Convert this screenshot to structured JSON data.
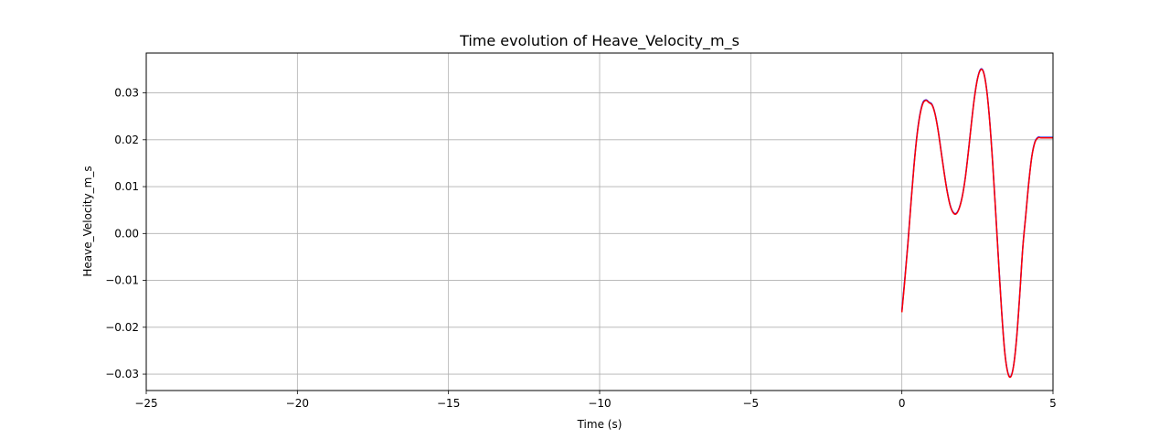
{
  "chart_data": {
    "type": "line",
    "title": "Time evolution of Heave_Velocity_m_s",
    "xlabel": "Time (s)",
    "ylabel": "Heave_Velocity_m_s",
    "xlim": [
      -25,
      5
    ],
    "ylim": [
      -0.0335,
      0.0385
    ],
    "grid": true,
    "x_ticks": [
      -25,
      -20,
      -15,
      -10,
      -5,
      0,
      5
    ],
    "x_tick_labels": [
      "−25",
      "−20",
      "−15",
      "−10",
      "−5",
      "0",
      "5"
    ],
    "y_ticks": [
      -0.03,
      -0.02,
      -0.01,
      0.0,
      0.01,
      0.02,
      0.03
    ],
    "y_tick_labels": [
      "−0.03",
      "−0.02",
      "−0.01",
      "0.00",
      "0.01",
      "0.02",
      "0.03"
    ],
    "series": [
      {
        "color": "#0000ff",
        "x": [
          0.0,
          0.1,
          0.2,
          0.3,
          0.4,
          0.5,
          0.6,
          0.7,
          0.8,
          0.9,
          1.0,
          1.1,
          1.2,
          1.3,
          1.4,
          1.5,
          1.6,
          1.7,
          1.8,
          1.9,
          2.0,
          2.1,
          2.2,
          2.3,
          2.4,
          2.5,
          2.6,
          2.7,
          2.8,
          2.9,
          3.0,
          3.1,
          3.2,
          3.3,
          3.4,
          3.5,
          3.6,
          3.7,
          3.8,
          3.9,
          4.0,
          4.1,
          4.2,
          4.3,
          4.4,
          4.5,
          4.6,
          4.7,
          4.8,
          4.9,
          5.0
        ],
        "y": [
          -0.0165,
          -0.0095,
          -0.002,
          0.0065,
          0.0145,
          0.021,
          0.0255,
          0.028,
          0.0285,
          0.028,
          0.0275,
          0.0255,
          0.022,
          0.0175,
          0.013,
          0.009,
          0.006,
          0.0045,
          0.0043,
          0.0055,
          0.008,
          0.012,
          0.0175,
          0.0235,
          0.029,
          0.033,
          0.035,
          0.0345,
          0.031,
          0.0245,
          0.0155,
          0.005,
          -0.006,
          -0.0165,
          -0.025,
          -0.0295,
          -0.0305,
          -0.028,
          -0.022,
          -0.013,
          -0.003,
          0.004,
          0.011,
          0.0165,
          0.0195,
          0.0205,
          0.0205,
          0.0205,
          0.0205,
          0.0205,
          0.0205
        ]
      },
      {
        "color": "#ff0000",
        "x": [
          0.0,
          0.1,
          0.2,
          0.3,
          0.4,
          0.5,
          0.6,
          0.7,
          0.8,
          0.9,
          1.0,
          1.1,
          1.2,
          1.3,
          1.4,
          1.5,
          1.6,
          1.7,
          1.8,
          1.9,
          2.0,
          2.1,
          2.2,
          2.3,
          2.4,
          2.5,
          2.6,
          2.7,
          2.8,
          2.9,
          3.0,
          3.1,
          3.2,
          3.3,
          3.4,
          3.5,
          3.6,
          3.7,
          3.8,
          3.9,
          4.0,
          4.1,
          4.2,
          4.3,
          4.4,
          4.5,
          4.6,
          4.7,
          4.8,
          4.9,
          5.0
        ],
        "y": [
          -0.0168,
          -0.0098,
          -0.0022,
          0.0063,
          0.0143,
          0.0208,
          0.0253,
          0.0278,
          0.0284,
          0.0279,
          0.0274,
          0.0254,
          0.0219,
          0.0174,
          0.0129,
          0.0089,
          0.0059,
          0.0044,
          0.0042,
          0.0054,
          0.0079,
          0.0119,
          0.0174,
          0.0234,
          0.0289,
          0.0329,
          0.0349,
          0.0344,
          0.0309,
          0.0244,
          0.0154,
          0.0049,
          -0.0061,
          -0.0166,
          -0.0251,
          -0.0296,
          -0.0306,
          -0.0281,
          -0.0221,
          -0.0131,
          -0.0031,
          0.0039,
          0.0109,
          0.0164,
          0.0194,
          0.0204,
          0.0204,
          0.0204,
          0.0204,
          0.0204,
          0.0204
        ]
      }
    ]
  }
}
